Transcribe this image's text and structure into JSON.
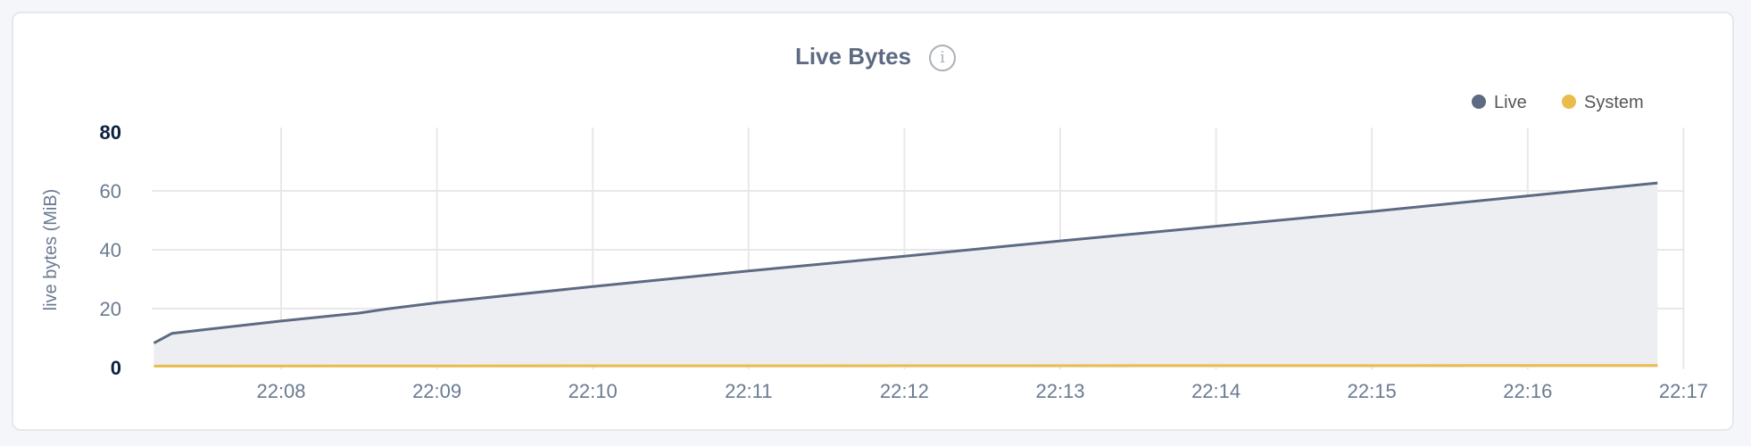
{
  "chart_data": {
    "type": "area",
    "title": "Live Bytes",
    "title_icon": "info-icon",
    "ylabel": "live bytes (MiB)",
    "xlabel": "",
    "ylim": [
      0,
      80
    ],
    "yticks": [
      "0",
      "20",
      "40",
      "60",
      "80"
    ],
    "xticks": [
      "22:08",
      "22:09",
      "22:10",
      "22:11",
      "22:12",
      "22:13",
      "22:14",
      "22:15",
      "22:16",
      "22:17"
    ],
    "grid": true,
    "legend_position": "top-right",
    "series": [
      {
        "name": "Live",
        "color": "#5d6a82",
        "fill": "#edeef2",
        "points": [
          [
            "22:07:11",
            8.3
          ],
          [
            "22:07:18",
            11.6
          ],
          [
            "22:08:00",
            15.8
          ],
          [
            "22:08:30",
            18.5
          ],
          [
            "22:08:40",
            19.8
          ],
          [
            "22:09:00",
            22.0
          ],
          [
            "22:10:00",
            27.5
          ],
          [
            "22:11:00",
            32.8
          ],
          [
            "22:12:00",
            37.8
          ],
          [
            "22:13:00",
            43.0
          ],
          [
            "22:14:00",
            48.0
          ],
          [
            "22:15:00",
            53.0
          ],
          [
            "22:16:00",
            58.3
          ],
          [
            "22:16:50",
            62.7
          ]
        ]
      },
      {
        "name": "System",
        "color": "#eabc4c",
        "points": [
          [
            "22:07:11",
            0.5
          ],
          [
            "22:16:50",
            0.7
          ]
        ]
      }
    ]
  }
}
